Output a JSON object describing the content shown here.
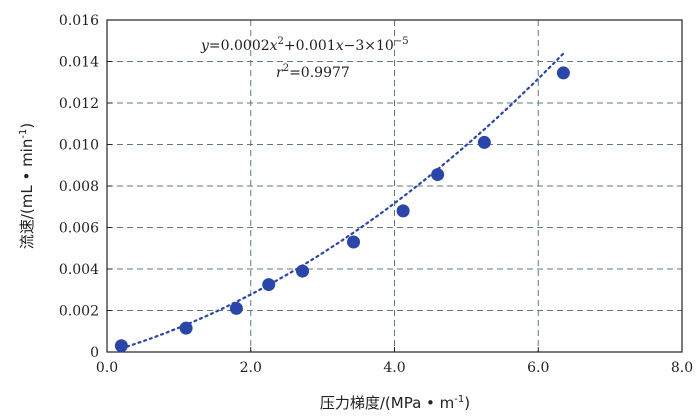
{
  "chart_data": {
    "type": "scatter",
    "xlabel": "压力梯度/(MPa • m",
    "xlabel_sup": "-1",
    "xlabel_end": ")",
    "ylabel": "流速/(mL • min",
    "ylabel_sup": "-1",
    "ylabel_end": ")",
    "xlim": [
      0,
      8
    ],
    "ylim": [
      0,
      0.016
    ],
    "x_ticks": [
      "0.0",
      "2.0",
      "4.0",
      "6.0",
      "8.0"
    ],
    "y_ticks": [
      "0",
      "0.002",
      "0.004",
      "0.006",
      "0.008",
      "0.010",
      "0.012",
      "0.014",
      "0.016"
    ],
    "grid": true,
    "series": [
      {
        "points": [
          {
            "x": 0.2,
            "y": 0.0003
          },
          {
            "x": 1.1,
            "y": 0.00115
          },
          {
            "x": 1.8,
            "y": 0.0021
          },
          {
            "x": 2.25,
            "y": 0.00325
          },
          {
            "x": 2.72,
            "y": 0.0039
          },
          {
            "x": 3.43,
            "y": 0.0053
          },
          {
            "x": 4.12,
            "y": 0.0068
          },
          {
            "x": 4.6,
            "y": 0.00855
          },
          {
            "x": 5.25,
            "y": 0.0101
          },
          {
            "x": 6.35,
            "y": 0.01345
          }
        ]
      }
    ],
    "fit": {
      "a": 0.0002,
      "b": 0.001,
      "c": -3e-05
    },
    "annotation": {
      "equation_parts": [
        "y",
        "=0.0002",
        "x",
        "2",
        "+0.001",
        "x",
        "−3×10",
        "−5"
      ],
      "r2_parts": [
        "r",
        "2",
        "=0.9977"
      ]
    },
    "colors": {
      "marker": "#2a46a8",
      "fit_line": "#2a46a8",
      "grid": "#5d7d7a"
    }
  }
}
